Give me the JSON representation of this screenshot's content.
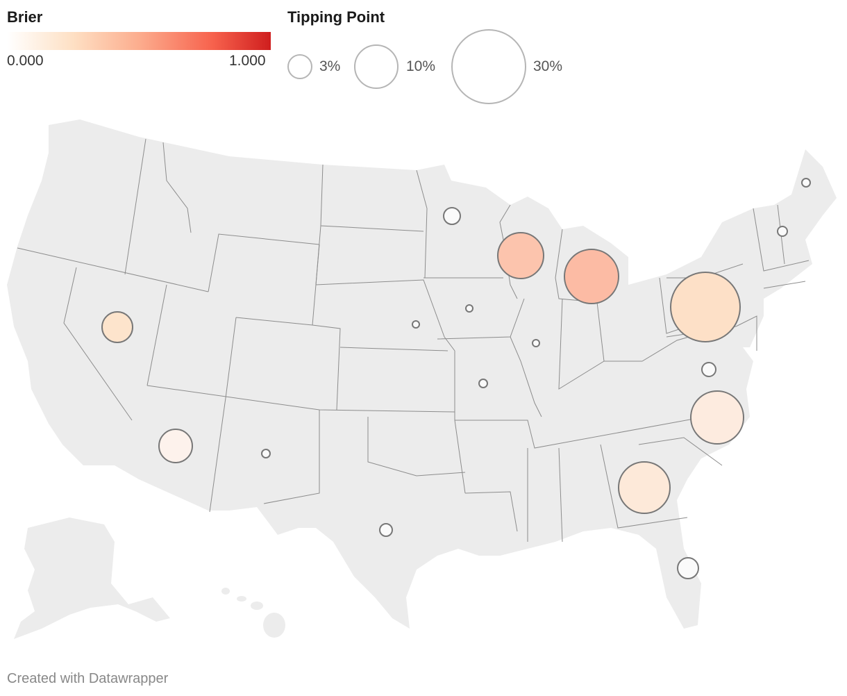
{
  "legend": {
    "color": {
      "title": "Brier",
      "min_label": "0.000",
      "max_label": "1.000",
      "color_stops": [
        "#ffffff",
        "#fee0c4",
        "#fcad8e",
        "#f7624d",
        "#cf1e1e"
      ]
    },
    "size": {
      "title": "Tipping Point",
      "entries": [
        {
          "label": "3%",
          "value": 3
        },
        {
          "label": "10%",
          "value": 10
        },
        {
          "label": "30%",
          "value": 30
        }
      ]
    }
  },
  "map": {
    "land_color": "#ececec",
    "border_color": "#8c8c8c",
    "symbol_outline": "#777777",
    "symbols": [
      {
        "state": "Minnesota",
        "color": "#fafafa"
      },
      {
        "state": "Wisconsin",
        "color": "#fcc4ad"
      },
      {
        "state": "Michigan",
        "color": "#fcbba4"
      },
      {
        "state": "Pennsylvania",
        "color": "#fde0c7"
      },
      {
        "state": "Nevada",
        "color": "#fde4cc"
      },
      {
        "state": "Arizona",
        "color": "#fdf2ec"
      },
      {
        "state": "North Carolina",
        "color": "#fdebdf"
      },
      {
        "state": "Georgia",
        "color": "#fde9d9"
      },
      {
        "state": "Florida",
        "color": "#fafafa"
      },
      {
        "state": "Virginia",
        "color": "#fafafa"
      },
      {
        "state": "Texas",
        "color": "#fafafa"
      },
      {
        "state": "New Mexico",
        "color": "#fafafa"
      },
      {
        "state": "Iowa",
        "color": "#fafafa"
      },
      {
        "state": "Nebraska",
        "color": "#fafafa"
      },
      {
        "state": "Illinois",
        "color": "#fafafa"
      },
      {
        "state": "Missouri",
        "color": "#fafafa"
      },
      {
        "state": "Maine",
        "color": "#fafafa"
      },
      {
        "state": "New Hampshire",
        "color": "#fafafa"
      }
    ]
  },
  "footer": {
    "credit": "Created with Datawrapper"
  }
}
